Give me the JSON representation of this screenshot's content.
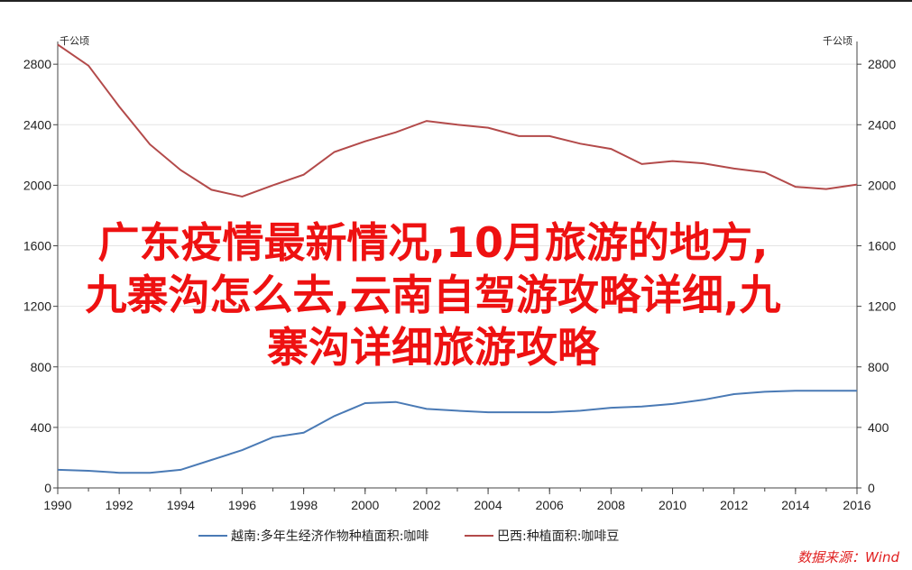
{
  "chart_data": {
    "type": "line",
    "x": [
      1990,
      1991,
      1992,
      1993,
      1994,
      1995,
      1996,
      1997,
      1998,
      1999,
      2000,
      2001,
      2002,
      2003,
      2004,
      2005,
      2006,
      2007,
      2008,
      2009,
      2010,
      2011,
      2012,
      2013,
      2014,
      2015,
      2016
    ],
    "xticks": [
      "1990",
      "1992",
      "1994",
      "1996",
      "1998",
      "2000",
      "2002",
      "2004",
      "2006",
      "2008",
      "2010",
      "2012",
      "2014",
      "2016"
    ],
    "yticks": [
      "0",
      "400",
      "800",
      "1200",
      "1600",
      "2000",
      "2400",
      "2800"
    ],
    "ylim": [
      0,
      2950
    ],
    "y_unit_left": "千公顷",
    "y_unit_right": "千公顷",
    "grid": true,
    "legend_position": "bottom",
    "series": [
      {
        "name": "越南:多年生经济作物种植面积:咖啡",
        "color": "#4a7ab5",
        "values": [
          120,
          113,
          100,
          100,
          120,
          185,
          250,
          335,
          365,
          475,
          560,
          568,
          522,
          510,
          500,
          500,
          500,
          510,
          530,
          538,
          555,
          582,
          620,
          635,
          642,
          642,
          642
        ]
      },
      {
        "name": "巴西:种植面积:咖啡豆",
        "color": "#b34a4a",
        "values": [
          2930,
          2790,
          2520,
          2270,
          2100,
          1970,
          1925,
          2000,
          2070,
          2220,
          2290,
          2350,
          2425,
          2400,
          2380,
          2325,
          2325,
          2275,
          2240,
          2140,
          2160,
          2145,
          2110,
          2085,
          1990,
          1975,
          2005
        ]
      }
    ]
  },
  "overlay_text": {
    "line1": "广东疫情最新情况,10月旅游的地方,",
    "line2": "九寨沟怎么去,云南自驾游攻略详细,九",
    "line3": "寨沟详细旅游攻略"
  },
  "source_label": "数据来源：Wind"
}
